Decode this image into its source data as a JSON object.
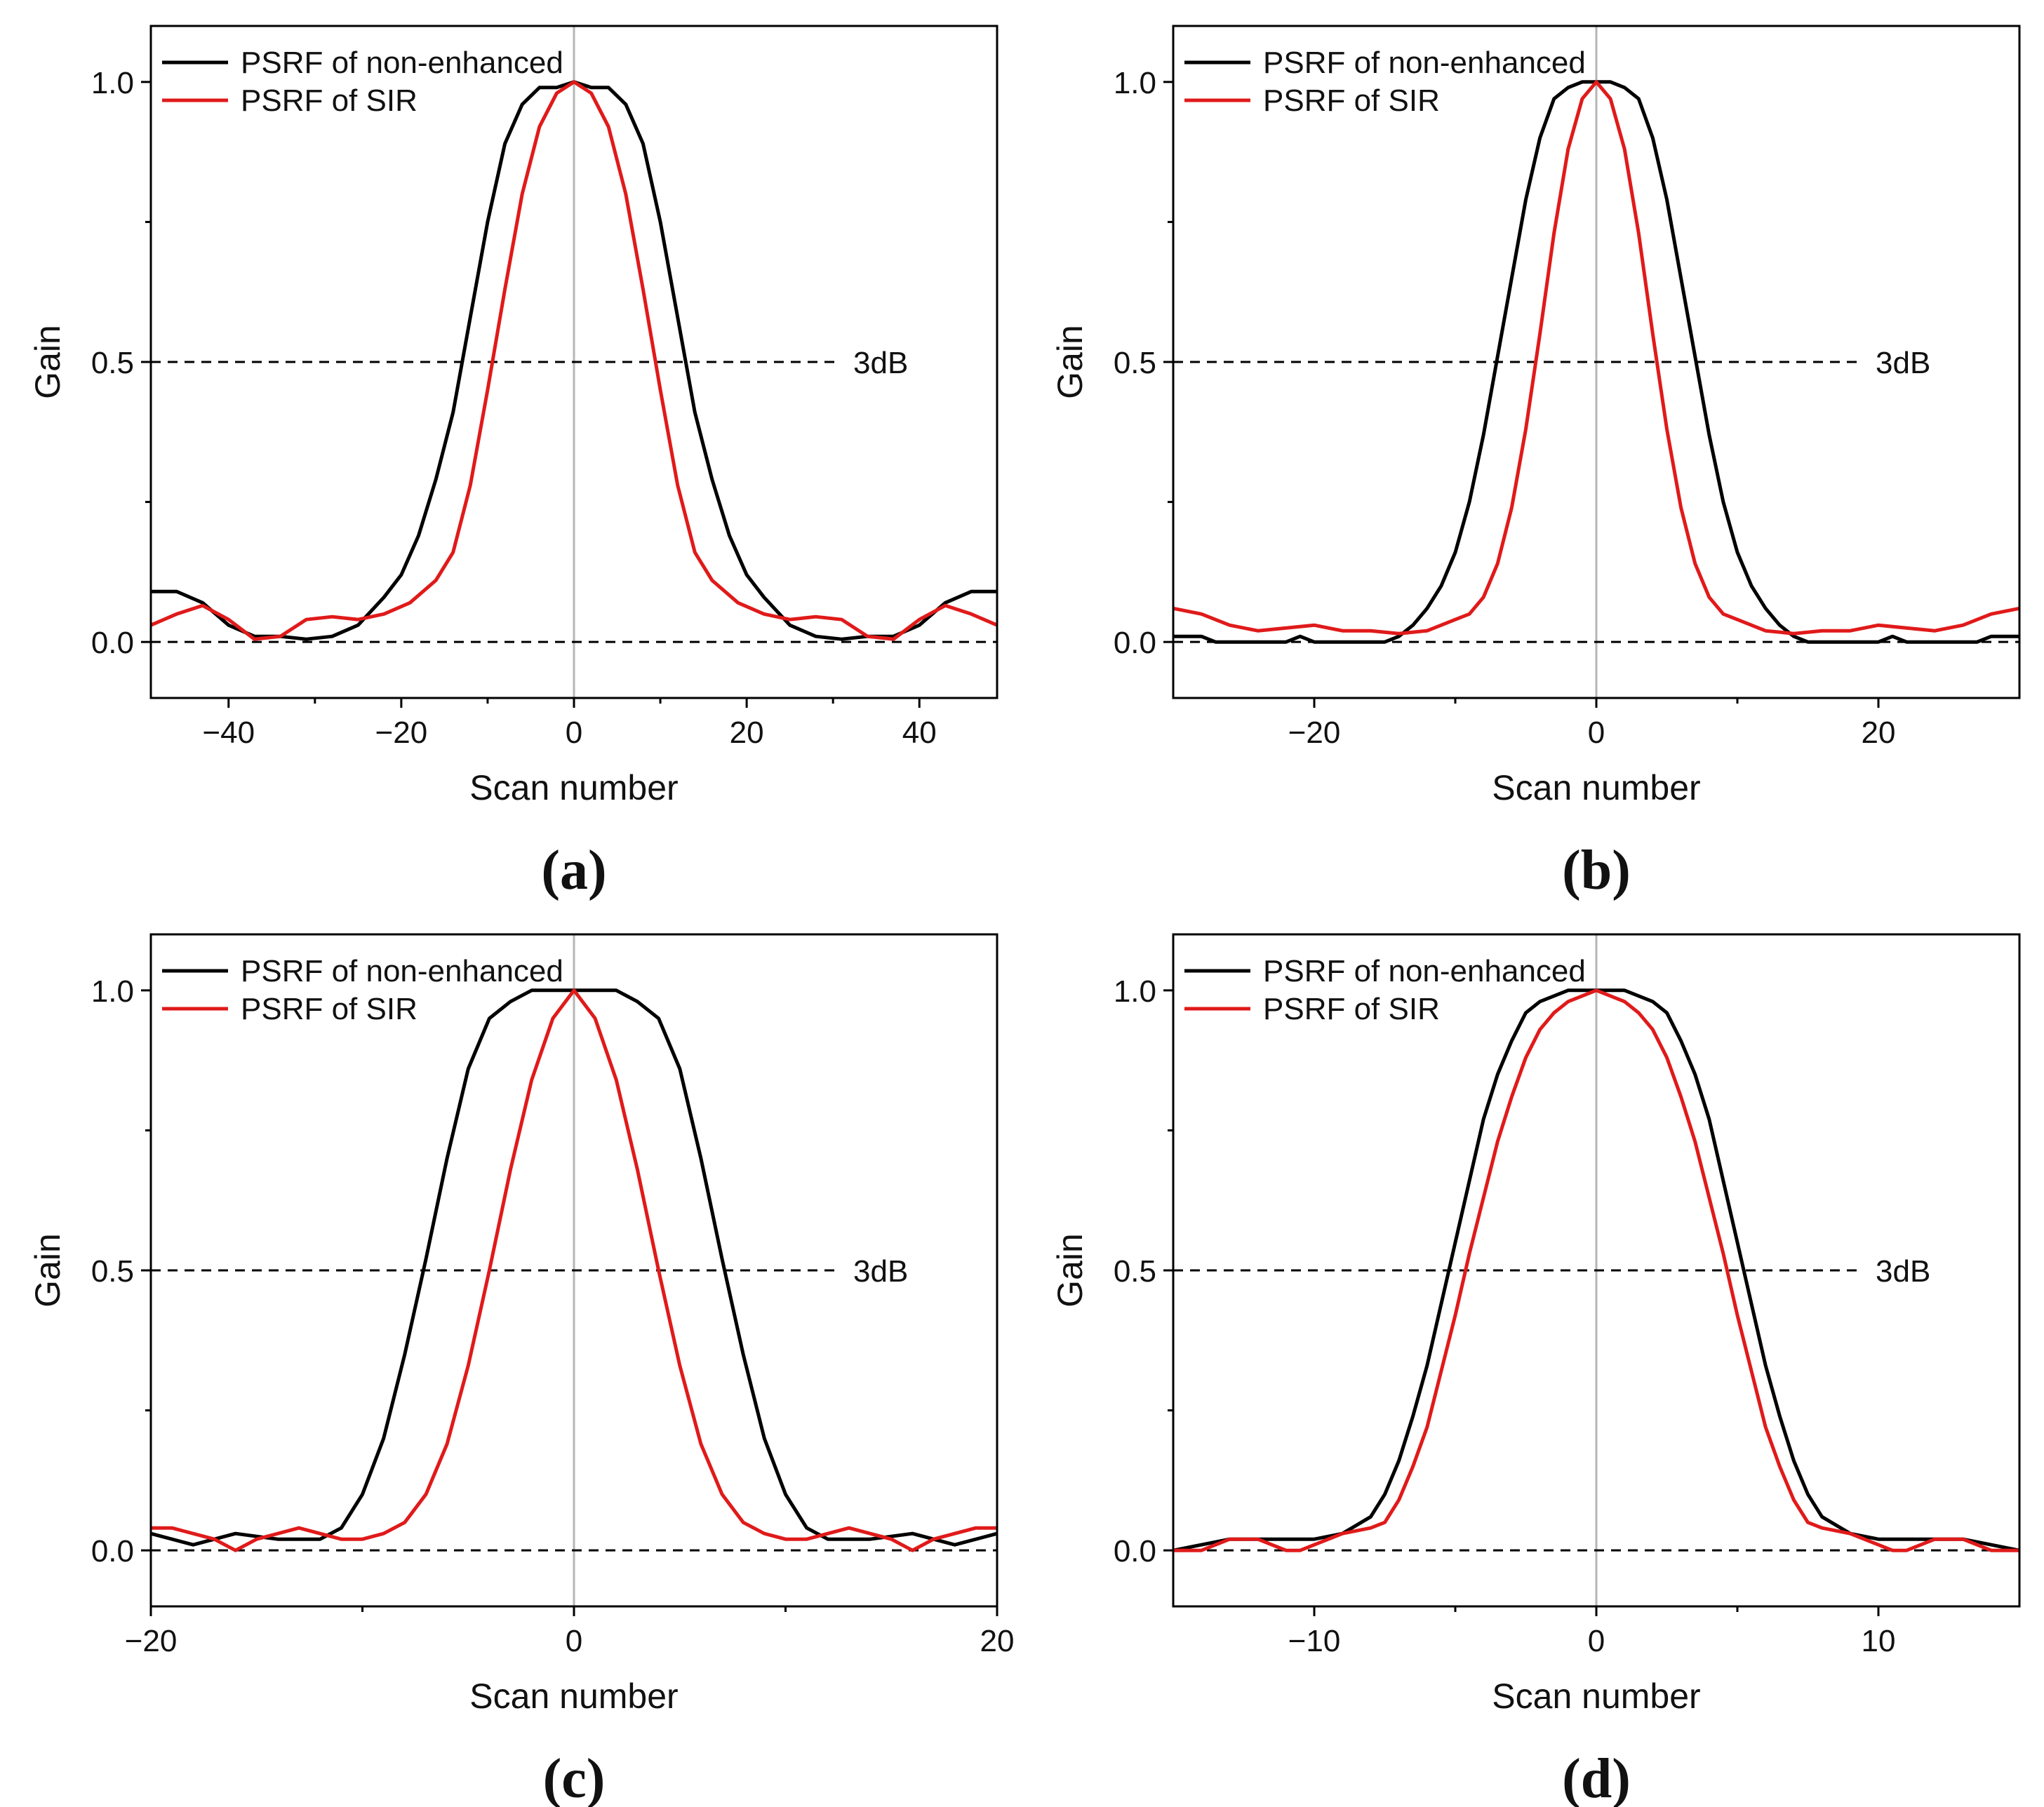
{
  "figure": {
    "panel_label_open": "(",
    "panel_label_close": ")"
  },
  "colors": {
    "non_enhanced": "#000000",
    "sir": "#e01a1a",
    "center_line": "#b5b5b5",
    "ref_line": "#000000",
    "axis": "#000000"
  },
  "chart_data": [
    {
      "panel": "a",
      "type": "line",
      "xlabel": "Scan number",
      "ylabel": "Gain",
      "xlim": [
        -49,
        49
      ],
      "ylim": [
        -0.1,
        1.1
      ],
      "xticks": [
        -40,
        -20,
        0,
        20,
        40
      ],
      "xtick_labels": [
        "−40",
        "−20",
        "0",
        "20",
        "40"
      ],
      "yticks": [
        0.0,
        0.5,
        1.0
      ],
      "ytick_labels": [
        "0.0",
        "0.5",
        "1.0"
      ],
      "hlines": [
        0.0,
        0.5
      ],
      "annotation": "3dB",
      "annotation_y": 0.5,
      "legend": [
        "PSRF of non-enhanced",
        "PSRF of SIR"
      ],
      "series": [
        {
          "name": "PSRF of non-enhanced",
          "x": [
            -49,
            -46,
            -43,
            -40,
            -37,
            -34,
            -31,
            -28,
            -25,
            -22,
            -20,
            -18,
            -16,
            -14,
            -12,
            -10,
            -8,
            -6,
            -4,
            -2,
            0,
            2,
            4,
            6,
            8,
            10,
            12,
            14,
            16,
            18,
            20,
            22,
            25,
            28,
            31,
            34,
            37,
            40,
            43,
            46,
            49
          ],
          "y": [
            0.09,
            0.09,
            0.07,
            0.03,
            0.01,
            0.01,
            0.005,
            0.01,
            0.03,
            0.08,
            0.12,
            0.19,
            0.29,
            0.41,
            0.58,
            0.75,
            0.89,
            0.96,
            0.99,
            0.99,
            1.0,
            0.99,
            0.99,
            0.96,
            0.89,
            0.75,
            0.58,
            0.41,
            0.29,
            0.19,
            0.12,
            0.08,
            0.03,
            0.01,
            0.005,
            0.01,
            0.01,
            0.03,
            0.07,
            0.09,
            0.09
          ]
        },
        {
          "name": "PSRF of SIR",
          "x": [
            -49,
            -46,
            -43,
            -40,
            -37,
            -34,
            -31,
            -28,
            -25,
            -22,
            -19,
            -16,
            -14,
            -12,
            -10,
            -8,
            -6,
            -4,
            -2,
            0,
            2,
            4,
            6,
            8,
            10,
            12,
            14,
            16,
            19,
            22,
            25,
            28,
            31,
            34,
            37,
            40,
            43,
            46,
            49
          ],
          "y": [
            0.03,
            0.05,
            0.065,
            0.04,
            0.005,
            0.01,
            0.04,
            0.045,
            0.04,
            0.05,
            0.07,
            0.11,
            0.16,
            0.28,
            0.45,
            0.63,
            0.8,
            0.92,
            0.98,
            1.0,
            0.98,
            0.92,
            0.8,
            0.63,
            0.45,
            0.28,
            0.16,
            0.11,
            0.07,
            0.05,
            0.04,
            0.045,
            0.04,
            0.01,
            0.005,
            0.04,
            0.065,
            0.05,
            0.03
          ]
        }
      ]
    },
    {
      "panel": "b",
      "type": "line",
      "xlabel": "Scan number",
      "ylabel": "Gain",
      "xlim": [
        -30,
        30
      ],
      "ylim": [
        -0.1,
        1.1
      ],
      "xticks": [
        -20,
        0,
        20
      ],
      "xtick_labels": [
        "−20",
        "0",
        "20"
      ],
      "yticks": [
        0.0,
        0.5,
        1.0
      ],
      "ytick_labels": [
        "0.0",
        "0.5",
        "1.0"
      ],
      "hlines": [
        0.0,
        0.5
      ],
      "annotation": "3dB",
      "annotation_y": 0.5,
      "legend": [
        "PSRF of non-enhanced",
        "PSRF of SIR"
      ],
      "series": [
        {
          "name": "PSRF of non-enhanced",
          "x": [
            -30,
            -28,
            -27,
            -24,
            -22,
            -21,
            -20,
            -17,
            -15,
            -14,
            -13,
            -12,
            -11,
            -10,
            -9,
            -8,
            -7,
            -6,
            -5,
            -4,
            -3,
            -2,
            -1,
            0,
            1,
            2,
            3,
            4,
            5,
            6,
            7,
            8,
            9,
            10,
            11,
            12,
            13,
            14,
            15,
            17,
            20,
            21,
            22,
            24,
            27,
            28,
            30
          ],
          "y": [
            0.01,
            0.01,
            0.0,
            0.0,
            0.0,
            0.01,
            0.0,
            0.0,
            0.0,
            0.01,
            0.03,
            0.06,
            0.1,
            0.16,
            0.25,
            0.37,
            0.51,
            0.65,
            0.79,
            0.9,
            0.97,
            0.99,
            1.0,
            1.0,
            1.0,
            0.99,
            0.97,
            0.9,
            0.79,
            0.65,
            0.51,
            0.37,
            0.25,
            0.16,
            0.1,
            0.06,
            0.03,
            0.01,
            0.0,
            0.0,
            0.0,
            0.01,
            0.0,
            0.0,
            0.0,
            0.01,
            0.01
          ]
        },
        {
          "name": "PSRF of SIR",
          "x": [
            -30,
            -28,
            -26,
            -24,
            -22,
            -20,
            -18,
            -16,
            -14,
            -12,
            -10,
            -9,
            -8,
            -7,
            -6,
            -5,
            -4,
            -3,
            -2,
            -1,
            0,
            1,
            2,
            3,
            4,
            5,
            6,
            7,
            8,
            9,
            10,
            12,
            14,
            16,
            18,
            20,
            22,
            24,
            26,
            28,
            30
          ],
          "y": [
            0.06,
            0.05,
            0.03,
            0.02,
            0.025,
            0.03,
            0.02,
            0.02,
            0.015,
            0.02,
            0.04,
            0.05,
            0.08,
            0.14,
            0.24,
            0.38,
            0.55,
            0.73,
            0.88,
            0.97,
            1.0,
            0.97,
            0.88,
            0.73,
            0.55,
            0.38,
            0.24,
            0.14,
            0.08,
            0.05,
            0.04,
            0.02,
            0.015,
            0.02,
            0.02,
            0.03,
            0.025,
            0.02,
            0.03,
            0.05,
            0.06
          ]
        }
      ]
    },
    {
      "panel": "c",
      "type": "line",
      "xlabel": "Scan number",
      "ylabel": "Gain",
      "xlim": [
        -20,
        20
      ],
      "ylim": [
        -0.1,
        1.1
      ],
      "xticks": [
        -20,
        0,
        20
      ],
      "xtick_labels": [
        "−20",
        "0",
        "20"
      ],
      "yticks": [
        0.0,
        0.5,
        1.0
      ],
      "ytick_labels": [
        "0.0",
        "0.5",
        "1.0"
      ],
      "hlines": [
        0.0,
        0.5
      ],
      "annotation": "3dB",
      "annotation_y": 0.5,
      "legend": [
        "PSRF of non-enhanced",
        "PSRF of SIR"
      ],
      "series": [
        {
          "name": "PSRF of non-enhanced",
          "x": [
            -20,
            -18,
            -16,
            -14,
            -12,
            -11,
            -10,
            -9,
            -8,
            -7,
            -6,
            -5,
            -4,
            -3,
            -2,
            -1,
            0,
            1,
            2,
            3,
            4,
            5,
            6,
            7,
            8,
            9,
            10,
            11,
            12,
            14,
            16,
            18,
            20
          ],
          "y": [
            0.03,
            0.01,
            0.03,
            0.02,
            0.02,
            0.04,
            0.1,
            0.2,
            0.35,
            0.52,
            0.7,
            0.86,
            0.95,
            0.98,
            1.0,
            1.0,
            1.0,
            1.0,
            1.0,
            0.98,
            0.95,
            0.86,
            0.7,
            0.52,
            0.35,
            0.2,
            0.1,
            0.04,
            0.02,
            0.02,
            0.03,
            0.01,
            0.03
          ]
        },
        {
          "name": "PSRF of SIR",
          "x": [
            -20,
            -19,
            -17,
            -16,
            -15,
            -13,
            -12,
            -11,
            -10,
            -9,
            -8,
            -7,
            -6,
            -5,
            -4,
            -3,
            -2,
            -1,
            0,
            1,
            2,
            3,
            4,
            5,
            6,
            7,
            8,
            9,
            10,
            11,
            12,
            13,
            15,
            16,
            17,
            19,
            20
          ],
          "y": [
            0.04,
            0.04,
            0.02,
            0.0,
            0.02,
            0.04,
            0.03,
            0.02,
            0.02,
            0.03,
            0.05,
            0.1,
            0.19,
            0.33,
            0.5,
            0.68,
            0.84,
            0.95,
            1.0,
            0.95,
            0.84,
            0.68,
            0.5,
            0.33,
            0.19,
            0.1,
            0.05,
            0.03,
            0.02,
            0.02,
            0.03,
            0.04,
            0.02,
            0.0,
            0.02,
            0.04,
            0.04
          ]
        }
      ]
    },
    {
      "panel": "d",
      "type": "line",
      "xlabel": "Scan number",
      "ylabel": "Gain",
      "xlim": [
        -15,
        15
      ],
      "ylim": [
        -0.1,
        1.1
      ],
      "xticks": [
        -10,
        0,
        10
      ],
      "xtick_labels": [
        "−10",
        "0",
        "10"
      ],
      "yticks": [
        0.0,
        0.5,
        1.0
      ],
      "ytick_labels": [
        "0.0",
        "0.5",
        "1.0"
      ],
      "hlines": [
        0.0,
        0.5
      ],
      "annotation": "3dB",
      "annotation_y": 0.5,
      "legend": [
        "PSRF of non-enhanced",
        "PSRF of SIR"
      ],
      "series": [
        {
          "name": "PSRF of non-enhanced",
          "x": [
            -15,
            -14,
            -13,
            -12,
            -11,
            -10,
            -9,
            -8,
            -7.5,
            -7,
            -6.5,
            -6,
            -5.5,
            -5,
            -4.5,
            -4,
            -3.5,
            -3,
            -2.5,
            -2,
            -1.5,
            -1,
            -0.5,
            0,
            0.5,
            1,
            1.5,
            2,
            2.5,
            3,
            3.5,
            4,
            4.5,
            5,
            5.5,
            6,
            6.5,
            7,
            7.5,
            8,
            9,
            10,
            11,
            12,
            13,
            14,
            15
          ],
          "y": [
            0.0,
            0.01,
            0.02,
            0.02,
            0.02,
            0.02,
            0.03,
            0.06,
            0.1,
            0.16,
            0.24,
            0.33,
            0.44,
            0.55,
            0.66,
            0.77,
            0.85,
            0.91,
            0.96,
            0.98,
            0.99,
            1.0,
            1.0,
            1.0,
            1.0,
            1.0,
            0.99,
            0.98,
            0.96,
            0.91,
            0.85,
            0.77,
            0.66,
            0.55,
            0.44,
            0.33,
            0.24,
            0.16,
            0.1,
            0.06,
            0.03,
            0.02,
            0.02,
            0.02,
            0.02,
            0.01,
            0.0
          ]
        },
        {
          "name": "PSRF of SIR",
          "x": [
            -15,
            -14,
            -13,
            -12,
            -11,
            -10.5,
            -10,
            -9,
            -8,
            -7.5,
            -7,
            -6.5,
            -6,
            -5.5,
            -5,
            -4.5,
            -4,
            -3.5,
            -3,
            -2.5,
            -2,
            -1.5,
            -1,
            -0.5,
            0,
            0.5,
            1,
            1.5,
            2,
            2.5,
            3,
            3.5,
            4,
            4.5,
            5,
            5.5,
            6,
            6.5,
            7,
            7.5,
            8,
            9,
            10,
            10.5,
            11,
            12,
            13,
            14,
            15
          ],
          "y": [
            0.0,
            0.0,
            0.02,
            0.02,
            0.0,
            0.0,
            0.01,
            0.03,
            0.04,
            0.05,
            0.09,
            0.15,
            0.22,
            0.32,
            0.42,
            0.53,
            0.63,
            0.73,
            0.81,
            0.88,
            0.93,
            0.96,
            0.98,
            0.99,
            1.0,
            0.99,
            0.98,
            0.96,
            0.93,
            0.88,
            0.81,
            0.73,
            0.63,
            0.53,
            0.42,
            0.32,
            0.22,
            0.15,
            0.09,
            0.05,
            0.04,
            0.03,
            0.01,
            0.0,
            0.0,
            0.02,
            0.02,
            0.0,
            0.0
          ]
        }
      ]
    }
  ]
}
